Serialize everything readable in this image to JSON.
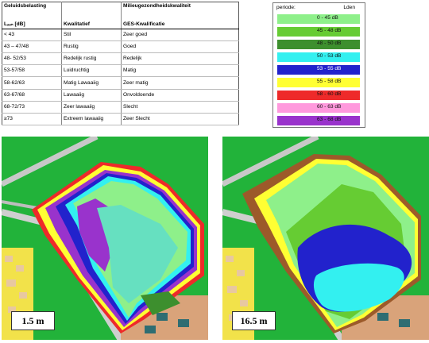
{
  "table": {
    "headers": [
      "Geluidsbelasting",
      "",
      "Milieugezondheidskwaliteit"
    ],
    "subheaders": [
      "Lₐₑₙ [dB]",
      "Kwalitatief",
      "GES-Kwalificatie"
    ],
    "rows": [
      [
        "< 43",
        "Stil",
        "Zeer goed"
      ],
      [
        "43 – 47/48",
        "Rustig",
        "Goed"
      ],
      [
        "48- 52/53",
        "Redelijk rustig",
        "Redelijk"
      ],
      [
        "53-57/58",
        "Luidruchtig",
        "Matig"
      ],
      [
        "58-62/63",
        "Matig Lawaaiig",
        "Zeer matig"
      ],
      [
        "63-67/68",
        "Lawaaiig",
        "Onvoldoende"
      ],
      [
        "68-72/73",
        "Zeer lawaaiig",
        "Slecht"
      ],
      [
        "≥73",
        "Extreem lawaaiig",
        "Zeer Slecht"
      ]
    ]
  },
  "legend": {
    "title": "periode:",
    "unit": "Lden",
    "items": [
      {
        "label": "0 - 45 dB",
        "color": "#8ef08a"
      },
      {
        "label": "45 - 48 dB",
        "color": "#66cc33"
      },
      {
        "label": "48 - 50 dB",
        "color": "#3d8f2e"
      },
      {
        "label": "50 - 53 dB",
        "color": "#33f0f0"
      },
      {
        "label": "53 - 55 dB",
        "color": "#2222cc"
      },
      {
        "label": "55 - 58 dB",
        "color": "#ffff33"
      },
      {
        "label": "58 - 60 dB",
        "color": "#ee2a2a"
      },
      {
        "label": "60 - 63 dB",
        "color": "#ff99dd"
      },
      {
        "label": "63 - 68 dB",
        "color": "#9933cc"
      }
    ]
  },
  "maps": [
    {
      "label": "1.5 m"
    },
    {
      "label": "16.5 m"
    }
  ]
}
